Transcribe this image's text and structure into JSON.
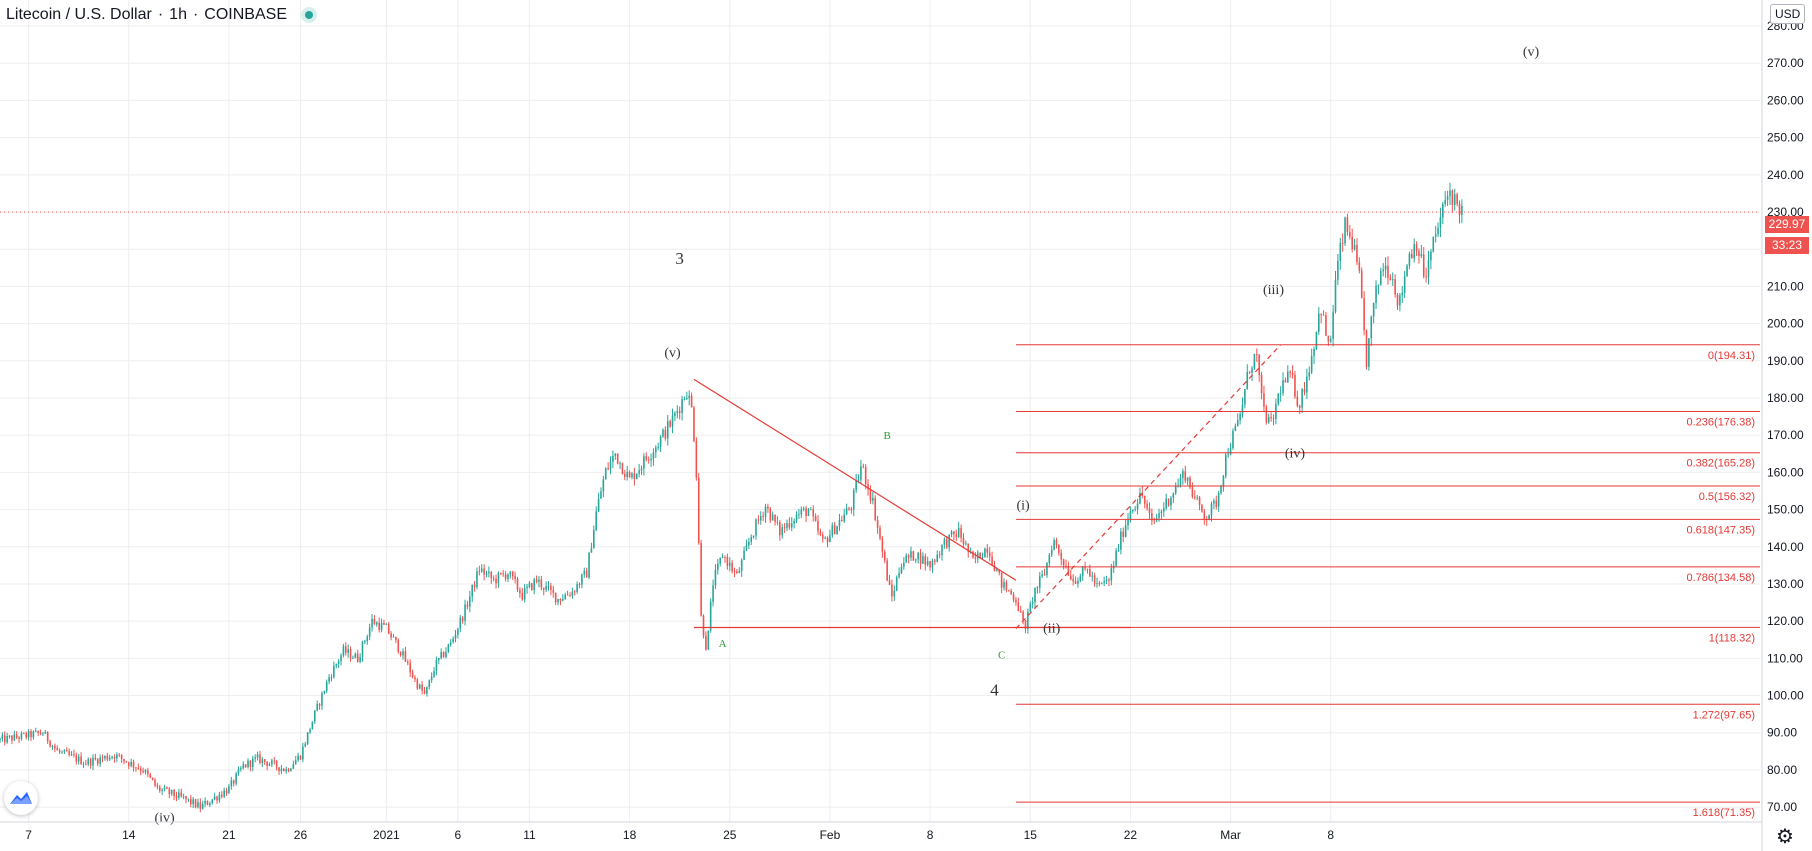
{
  "header": {
    "symbol": "Litecoin / U.S. Dollar",
    "interval": "1h",
    "exchange": "COINBASE"
  },
  "currency_label": "USD",
  "current_price_label": "229.97",
  "countdown_label": "33:23",
  "colors": {
    "up": "#26a69a",
    "down": "#ef5350",
    "fib_line": "#e53935",
    "trendline": "#e53935",
    "wave_label": "#333333",
    "abc_label": "#2e9a3a",
    "grid": "#eeeeee",
    "price_line": "#ef5350"
  },
  "chart_data": {
    "type": "candlestick",
    "title": "Litecoin / U.S. Dollar · 1h · COINBASE",
    "y_axis": {
      "ylim": [
        66,
        287
      ],
      "ticks": [
        "70.00",
        "80.00",
        "90.00",
        "100.00",
        "110.00",
        "120.00",
        "130.00",
        "140.00",
        "150.00",
        "160.00",
        "170.00",
        "180.00",
        "190.00",
        "200.00",
        "210.00",
        "220.00",
        "230.00",
        "240.00",
        "250.00",
        "260.00",
        "270.00",
        "280.00"
      ]
    },
    "x_axis": {
      "range_days": [
        -27,
        96
      ],
      "ticks": [
        {
          "label": "7",
          "day": -25
        },
        {
          "label": "14",
          "day": -18
        },
        {
          "label": "21",
          "day": -11
        },
        {
          "label": "26",
          "day": -6
        },
        {
          "label": "2021",
          "day": 0
        },
        {
          "label": "6",
          "day": 5
        },
        {
          "label": "11",
          "day": 10
        },
        {
          "label": "18",
          "day": 17
        },
        {
          "label": "25",
          "day": 24
        },
        {
          "label": "Feb",
          "day": 31
        },
        {
          "label": "8",
          "day": 38
        },
        {
          "label": "15",
          "day": 45
        },
        {
          "label": "22",
          "day": 52
        },
        {
          "label": "Mar",
          "day": 59
        },
        {
          "label": "8",
          "day": 66
        }
      ]
    },
    "grid": true,
    "price_anchors": [
      [
        -27,
        88
      ],
      [
        -24,
        90
      ],
      [
        -23,
        85
      ],
      [
        -21,
        82
      ],
      [
        -19,
        84
      ],
      [
        -17,
        80
      ],
      [
        -16,
        75
      ],
      [
        -14,
        72
      ],
      [
        -13,
        70
      ],
      [
        -11,
        75
      ],
      [
        -10,
        81
      ],
      [
        -9,
        83
      ],
      [
        -7,
        80
      ],
      [
        -6,
        84
      ],
      [
        -5,
        95
      ],
      [
        -4,
        105
      ],
      [
        -3,
        112
      ],
      [
        -2,
        110
      ],
      [
        -1,
        120
      ],
      [
        0,
        118
      ],
      [
        1,
        112
      ],
      [
        2,
        104
      ],
      [
        2.7,
        100
      ],
      [
        3.4,
        108
      ],
      [
        4.5,
        114
      ],
      [
        5.5,
        123
      ],
      [
        6.5,
        134
      ],
      [
        7.5,
        131
      ],
      [
        8.5,
        133
      ],
      [
        9.5,
        127
      ],
      [
        10.5,
        131
      ],
      [
        12,
        126
      ],
      [
        13,
        128
      ],
      [
        14,
        133
      ],
      [
        14.7,
        150
      ],
      [
        15.3,
        160
      ],
      [
        16,
        165
      ],
      [
        17,
        158
      ],
      [
        18,
        163
      ],
      [
        19,
        168
      ],
      [
        20,
        174
      ],
      [
        21,
        182
      ],
      [
        21.4,
        176
      ],
      [
        21.7,
        158
      ],
      [
        22,
        121
      ],
      [
        22.4,
        112
      ],
      [
        22.8,
        130
      ],
      [
        23.5,
        138
      ],
      [
        24.5,
        132
      ],
      [
        25.5,
        143
      ],
      [
        26.5,
        151
      ],
      [
        27.5,
        144
      ],
      [
        28.5,
        148
      ],
      [
        29.5,
        150
      ],
      [
        30.5,
        141
      ],
      [
        31.5,
        146
      ],
      [
        32.5,
        151
      ],
      [
        33.2,
        162
      ],
      [
        34,
        152
      ],
      [
        34.6,
        140
      ],
      [
        35.3,
        126
      ],
      [
        36,
        136
      ],
      [
        37,
        138
      ],
      [
        38,
        135
      ],
      [
        39,
        141
      ],
      [
        40,
        144
      ],
      [
        41,
        136
      ],
      [
        42,
        140
      ],
      [
        43,
        130
      ],
      [
        44,
        126
      ],
      [
        44.6,
        118
      ],
      [
        45.3,
        128
      ],
      [
        46,
        133
      ],
      [
        46.6,
        142
      ],
      [
        47.2,
        137
      ],
      [
        48,
        131
      ],
      [
        49,
        134
      ],
      [
        49.7,
        129
      ],
      [
        50.5,
        131
      ],
      [
        51.3,
        142
      ],
      [
        52,
        150
      ],
      [
        52.8,
        154
      ],
      [
        53.5,
        146
      ],
      [
        54.2,
        150
      ],
      [
        55,
        155
      ],
      [
        55.8,
        160
      ],
      [
        56.6,
        152
      ],
      [
        57.3,
        148
      ],
      [
        58,
        152
      ],
      [
        58.8,
        166
      ],
      [
        59.6,
        174
      ],
      [
        60.3,
        188
      ],
      [
        60.8,
        192
      ],
      [
        61.2,
        178
      ],
      [
        61.8,
        172
      ],
      [
        62.5,
        183
      ],
      [
        63.2,
        186
      ],
      [
        63.8,
        178
      ],
      [
        64.6,
        190
      ],
      [
        65.3,
        205
      ],
      [
        65.9,
        192
      ],
      [
        66.4,
        214
      ],
      [
        67,
        226
      ],
      [
        67.5,
        222
      ],
      [
        68,
        212
      ],
      [
        68.5,
        190
      ],
      [
        69,
        205
      ],
      [
        69.6,
        216
      ],
      [
        70.2,
        214
      ],
      [
        70.8,
        205
      ],
      [
        71.4,
        218
      ],
      [
        72,
        222
      ],
      [
        72.6,
        212
      ],
      [
        73.2,
        222
      ],
      [
        73.8,
        230
      ],
      [
        74.3,
        236
      ],
      [
        74.8,
        232
      ],
      [
        75.3,
        230
      ]
    ],
    "trendlines": [
      {
        "from": [
          21.5,
          185
        ],
        "to": [
          44,
          131
        ],
        "style": "solid"
      },
      {
        "from": [
          21.5,
          118.3
        ],
        "to": [
          52,
          118.3
        ],
        "style": "solid"
      },
      {
        "from": [
          44,
          118
        ],
        "to": [
          62.5,
          194.31
        ],
        "style": "dashed"
      }
    ],
    "fibonacci": {
      "start_day": 44,
      "levels": [
        {
          "label": "0(194.31)",
          "price": 194.31
        },
        {
          "label": "0.236(176.38)",
          "price": 176.38
        },
        {
          "label": "0.382(165.28)",
          "price": 165.28
        },
        {
          "label": "0.5(156.32)",
          "price": 156.32
        },
        {
          "label": "0.618(147.35)",
          "price": 147.35
        },
        {
          "label": "0.786(134.58)",
          "price": 134.58
        },
        {
          "label": "1(118.32)",
          "price": 118.32
        },
        {
          "label": "1.272(97.65)",
          "price": 97.65
        },
        {
          "label": "1.618(71.35)",
          "price": 71.35
        }
      ]
    },
    "current_price": 229.97,
    "annotations": [
      {
        "text": "3",
        "day": 20.5,
        "price": 216,
        "kind": "wave-major"
      },
      {
        "text": "(v)",
        "day": 20,
        "price": 191,
        "kind": "wave"
      },
      {
        "text": "(iv)",
        "day": -15.5,
        "price": 66,
        "kind": "wave"
      },
      {
        "text": "B",
        "day": 35,
        "price": 169,
        "kind": "abc"
      },
      {
        "text": "A",
        "day": 23.5,
        "price": 113,
        "kind": "abc"
      },
      {
        "text": "C",
        "day": 43,
        "price": 110,
        "kind": "abc"
      },
      {
        "text": "4",
        "day": 42.5,
        "price": 100,
        "kind": "wave-major"
      },
      {
        "text": "(i)",
        "day": 44.5,
        "price": 150,
        "kind": "wave"
      },
      {
        "text": "(ii)",
        "day": 46.5,
        "price": 117,
        "kind": "wave"
      },
      {
        "text": "(iii)",
        "day": 62,
        "price": 208,
        "kind": "wave"
      },
      {
        "text": "(iv)",
        "day": 63.5,
        "price": 164,
        "kind": "wave"
      },
      {
        "text": "(v)",
        "day": 80,
        "price": 272,
        "kind": "wave"
      }
    ]
  }
}
